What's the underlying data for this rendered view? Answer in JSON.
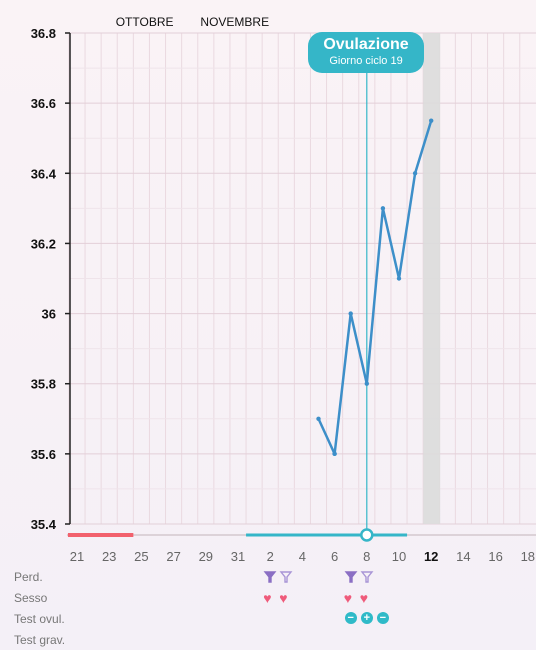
{
  "months": [
    {
      "label": "OTTOBRE",
      "day_index": 4.2
    },
    {
      "label": "NOVEMBRE",
      "day_index": 9.8
    }
  ],
  "banner": {
    "title": "Ovulazione",
    "subtitle": "Giorno ciclo 19"
  },
  "row_labels": [
    "Perd.",
    "Sesso",
    "Test ovul.",
    "Test grav."
  ],
  "today_label": "12",
  "colors": {
    "line": "#3d8fc9",
    "accent": "#35b6c8",
    "period": "#f2616d",
    "today_band": "#dcdcdc"
  },
  "icons": {
    "perd": [
      {
        "day_index": 12,
        "type": "drop-filled"
      },
      {
        "day_index": 13,
        "type": "drop-outline"
      },
      {
        "day_index": 17,
        "type": "drop-filled"
      },
      {
        "day_index": 18,
        "type": "drop-outline"
      }
    ],
    "sesso": [
      {
        "day_index": 12,
        "type": "heart"
      },
      {
        "day_index": 13,
        "type": "heart"
      },
      {
        "day_index": 17,
        "type": "heart"
      },
      {
        "day_index": 18,
        "type": "heart"
      }
    ],
    "test_ovul": [
      {
        "day_index": 17,
        "type": "minus"
      },
      {
        "day_index": 18,
        "type": "plus"
      },
      {
        "day_index": 19,
        "type": "minus"
      }
    ]
  },
  "chart_data": {
    "type": "line",
    "ylim": [
      35.4,
      36.8
    ],
    "y_ticks": [
      35.4,
      35.6,
      35.8,
      36,
      36.2,
      36.4,
      36.6,
      36.8
    ],
    "x_ticks": [
      "21",
      "23",
      "25",
      "27",
      "29",
      "31",
      "2",
      "4",
      "6",
      "8",
      "10",
      "12",
      "14",
      "16",
      "18"
    ],
    "x_tick_positions": [
      0,
      2,
      4,
      6,
      8,
      10,
      12,
      14,
      16,
      18,
      20,
      22,
      24,
      26,
      28
    ],
    "day_range": [
      -0.5,
      28.5
    ],
    "period_bar": [
      -0.5,
      3.5
    ],
    "cycle_bar": [
      10.5,
      20.5
    ],
    "ovulation_day": 18,
    "today_day": 22,
    "series": [
      {
        "x": [
          15,
          16
        ],
        "y": [
          35.7,
          35.6
        ]
      },
      {
        "x": [
          16,
          17,
          18,
          19,
          20,
          21,
          22
        ],
        "y": [
          35.6,
          36.0,
          35.8,
          36.3,
          36.1,
          36.4,
          36.55
        ]
      }
    ]
  }
}
